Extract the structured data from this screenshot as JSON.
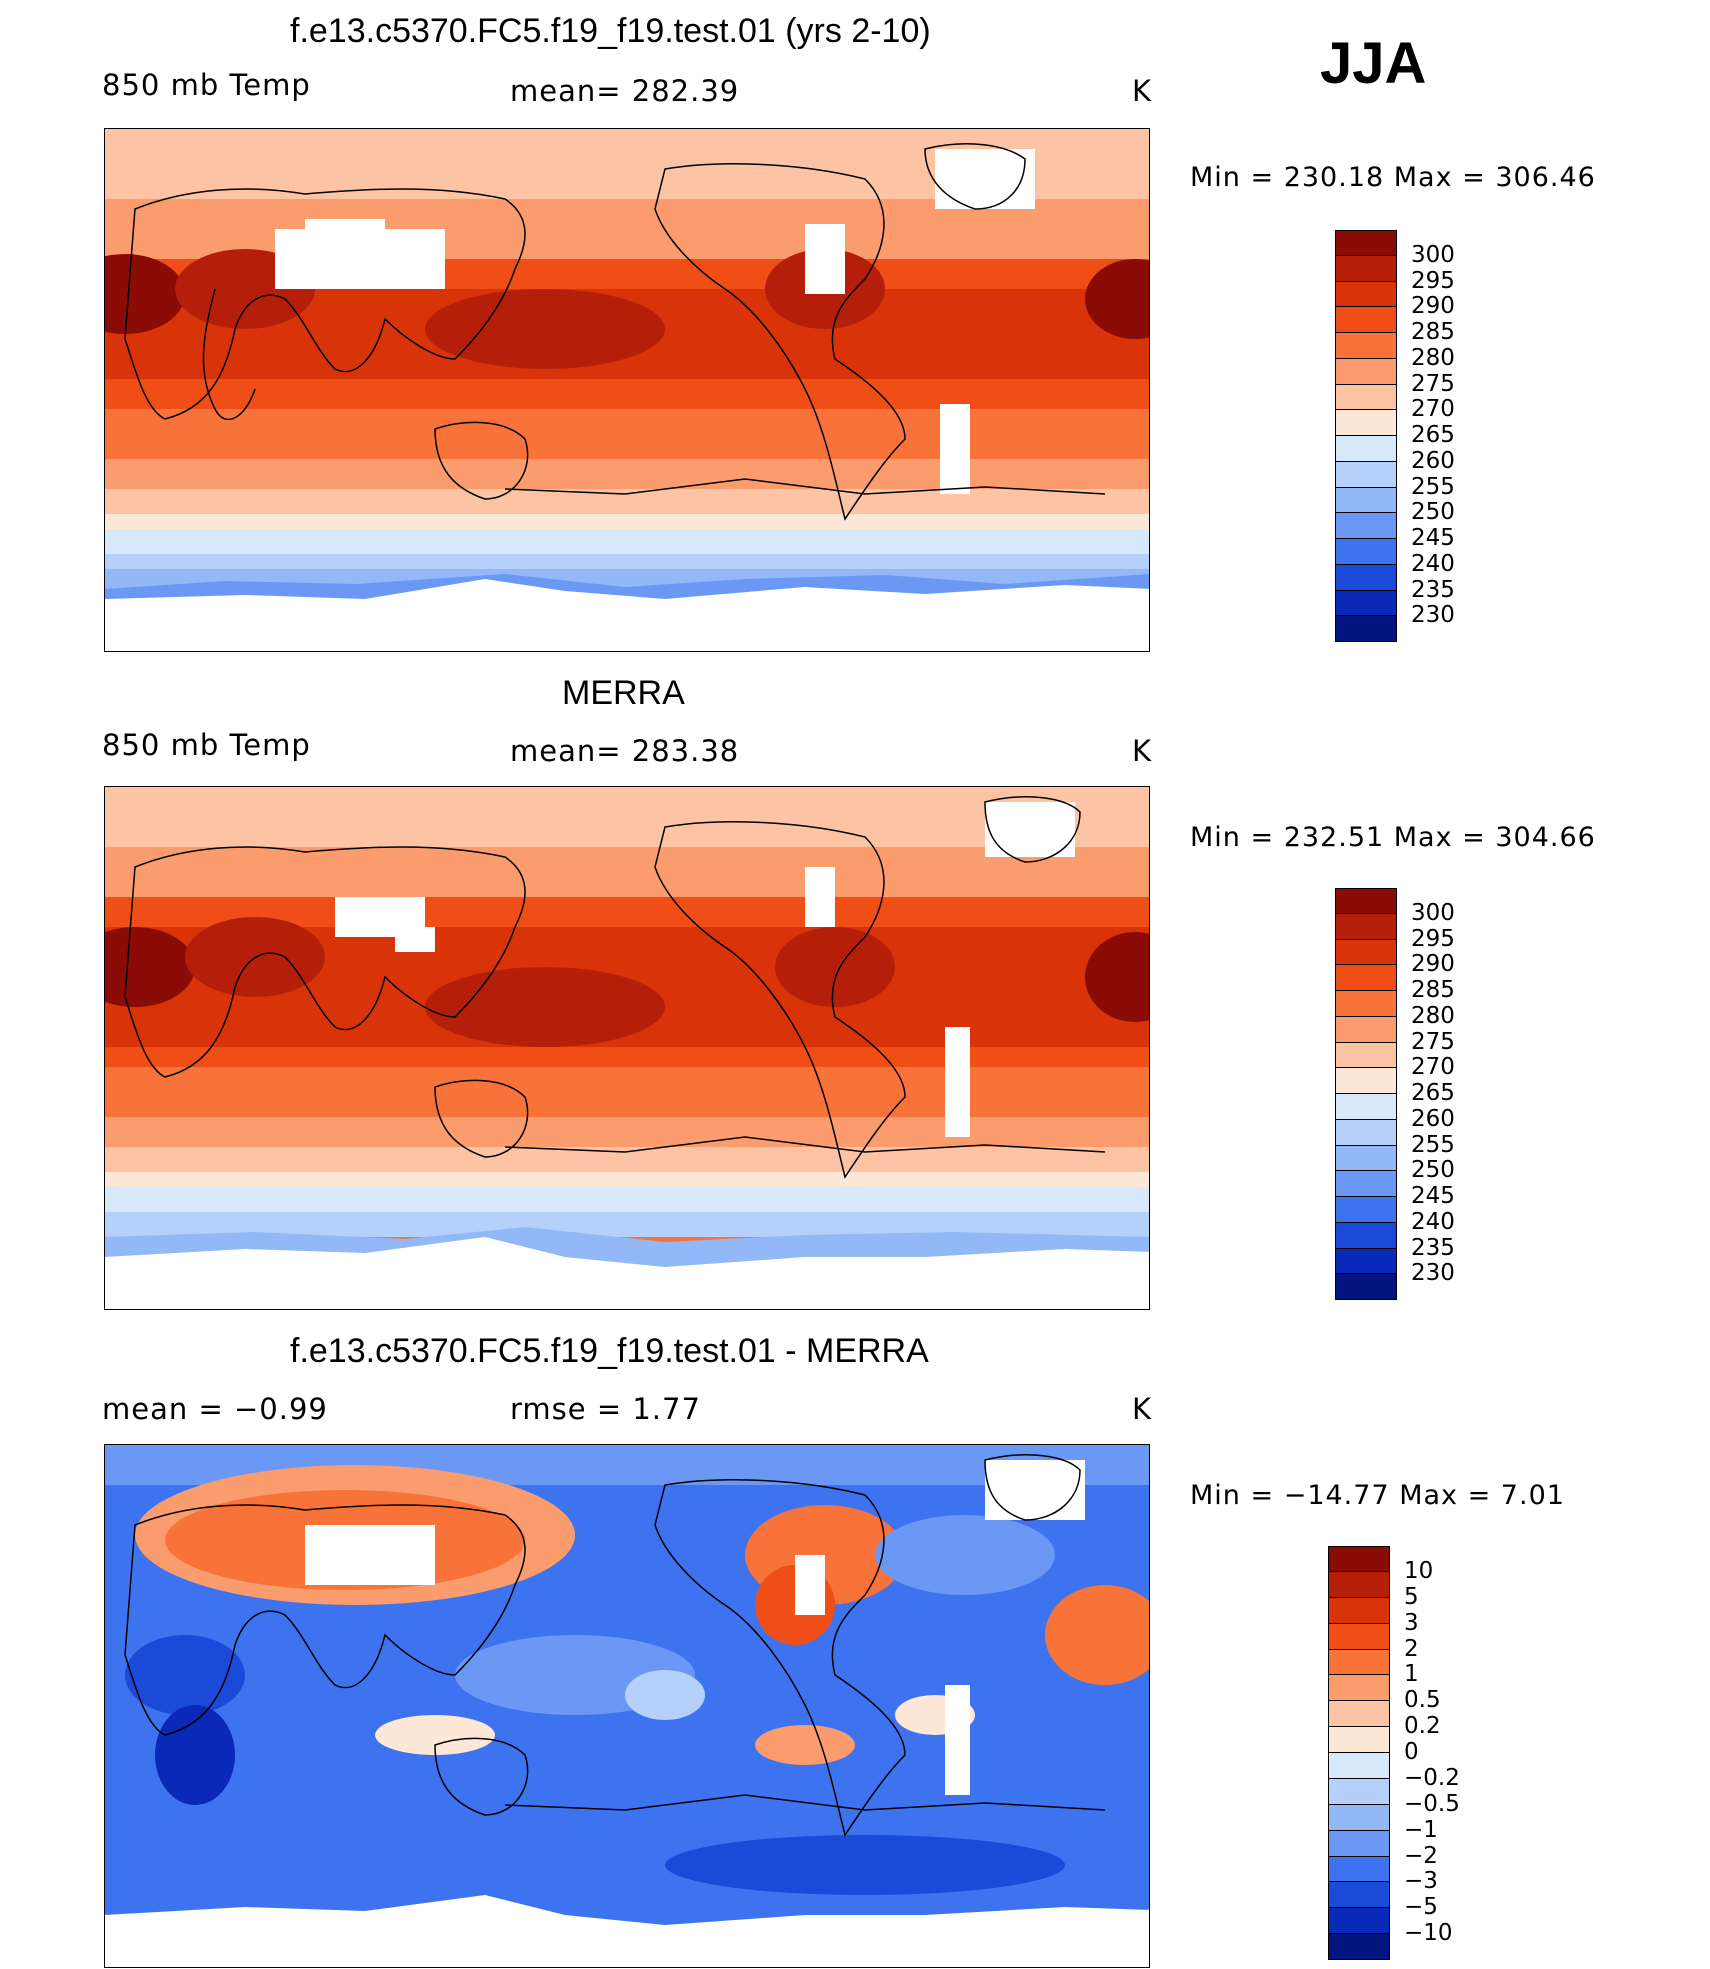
{
  "season": "JJA",
  "units": "K",
  "panels": [
    {
      "id": "model",
      "title": "f.e13.c5370.FC5.f19_f19.test.01 (yrs 2-10)",
      "left_label": "850 mb Temp",
      "center_label": "mean=  282.39",
      "right_label": "K",
      "min_max": "Min  =  230.18  Max  =  306.46",
      "colorbar": [
        "300",
        "295",
        "290",
        "285",
        "280",
        "275",
        "270",
        "265",
        "260",
        "255",
        "250",
        "245",
        "240",
        "235",
        "230"
      ]
    },
    {
      "id": "obs",
      "title": "MERRA",
      "left_label": "850 mb Temp",
      "center_label": "mean=  283.38",
      "right_label": "K",
      "min_max": "Min  =  232.51  Max  =  304.66",
      "colorbar": [
        "300",
        "295",
        "290",
        "285",
        "280",
        "275",
        "270",
        "265",
        "260",
        "255",
        "250",
        "245",
        "240",
        "235",
        "230"
      ]
    },
    {
      "id": "diff",
      "title": "f.e13.c5370.FC5.f19_f19.test.01 - MERRA",
      "left_label": "mean  =    −0.99",
      "center_label": "rmse  =      1.77",
      "right_label": "K",
      "min_max": "Min  =  −14.77  Max  =       7.01",
      "colorbar": [
        "10",
        "5",
        "3",
        "2",
        "1",
        "0.5",
        "0.2",
        "0",
        "−0.2",
        "−0.5",
        "−1",
        "−2",
        "−3",
        "−5",
        "−10"
      ]
    }
  ],
  "colors": {
    "temp_scale": [
      "#8b0b06",
      "#b51f0a",
      "#d93409",
      "#ef4f17",
      "#f7733a",
      "#fa9c6e",
      "#fcc4a4",
      "#fde7d6",
      "#d7e8fb",
      "#b5d0fa",
      "#93b8f8",
      "#6b98f5",
      "#3e73f0",
      "#1b4ad9",
      "#0a29b8",
      "#05157f"
    ],
    "diff_scale": [
      "#8b0b06",
      "#b51f0a",
      "#d93409",
      "#ef4f17",
      "#f7733a",
      "#fa9c6e",
      "#fcc4a4",
      "#fde7d6",
      "#d7e8fb",
      "#b5d0fa",
      "#93b8f8",
      "#6b98f5",
      "#3e73f0",
      "#1b4ad9",
      "#0a29b8",
      "#05157f"
    ],
    "missing": "#ffffff",
    "coast": "#000000"
  }
}
